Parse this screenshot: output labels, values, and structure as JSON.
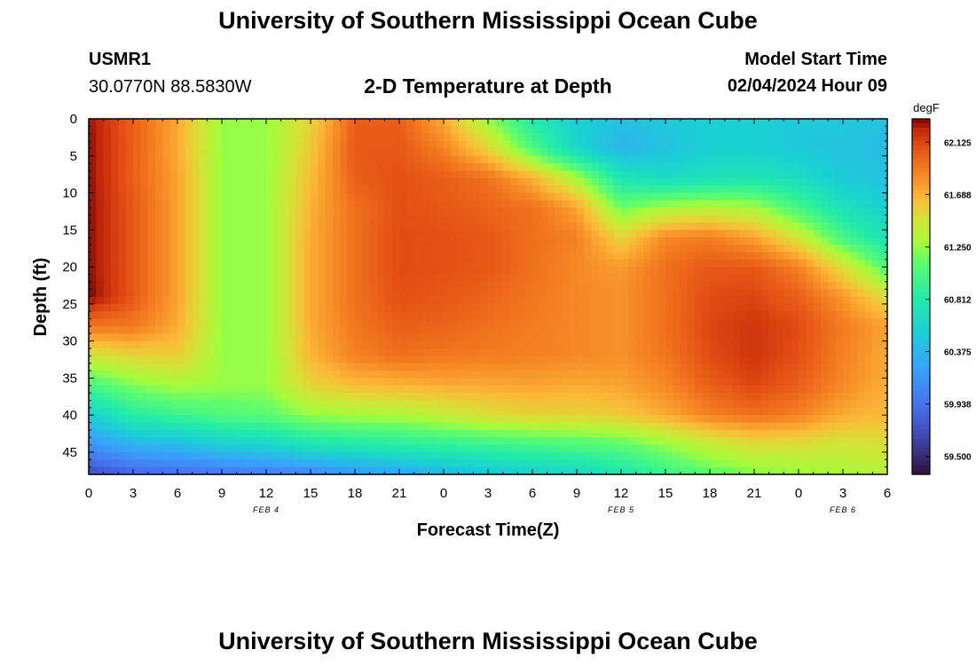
{
  "page": {
    "title": "University of Southern Mississippi Ocean Cube",
    "title_bottom": "University of Southern Mississippi Ocean Cube",
    "station_id": "USMR1",
    "coordinates": "30.0770N  88.5830W",
    "plot_title": "2-D Temperature at Depth",
    "model_start_label": "Model Start Time",
    "model_start_value": "02/04/2024 Hour 09"
  },
  "chart_data": {
    "type": "heatmap",
    "title": "2-D Temperature at Depth",
    "xlabel": "Forecast Time(Z)",
    "ylabel": "Depth (ft)",
    "x_hours_range": [
      0,
      54
    ],
    "y_range_ft": [
      0,
      48
    ],
    "x_ticks": [
      {
        "h": 0,
        "label": "0"
      },
      {
        "h": 3,
        "label": "3"
      },
      {
        "h": 6,
        "label": "6"
      },
      {
        "h": 9,
        "label": "9"
      },
      {
        "h": 12,
        "label": "12"
      },
      {
        "h": 15,
        "label": "15"
      },
      {
        "h": 18,
        "label": "18"
      },
      {
        "h": 21,
        "label": "21"
      },
      {
        "h": 24,
        "label": "0"
      },
      {
        "h": 27,
        "label": "3"
      },
      {
        "h": 30,
        "label": "6"
      },
      {
        "h": 33,
        "label": "9"
      },
      {
        "h": 36,
        "label": "12"
      },
      {
        "h": 39,
        "label": "15"
      },
      {
        "h": 42,
        "label": "18"
      },
      {
        "h": 45,
        "label": "21"
      },
      {
        "h": 48,
        "label": "0"
      },
      {
        "h": 51,
        "label": "3"
      },
      {
        "h": 54,
        "label": "6"
      }
    ],
    "y_ticks": [
      0,
      5,
      10,
      15,
      20,
      25,
      30,
      35,
      40,
      45
    ],
    "date_labels": [
      {
        "h": 12,
        "label": "FEB 4"
      },
      {
        "h": 36,
        "label": "FEB 5"
      },
      {
        "h": 51,
        "label": "FEB 6"
      }
    ],
    "colorbar": {
      "unit": "degF",
      "min": 59.35,
      "max": 62.32,
      "ticks": [
        62.125,
        61.688,
        61.25,
        60.812,
        60.375,
        59.938,
        59.5
      ],
      "tick_labels": [
        "62.125",
        "61.688",
        "61.250",
        "60.812",
        "60.375",
        "59.938",
        "59.500"
      ]
    },
    "depths_ft": [
      0,
      4,
      8,
      12,
      16,
      20,
      24,
      28,
      32,
      36,
      40,
      44,
      48
    ],
    "times_h": [
      0,
      3,
      6,
      9,
      12,
      15,
      18,
      21,
      24,
      27,
      30,
      33,
      36,
      39,
      42,
      45,
      48,
      51,
      54
    ],
    "temperature_degF": [
      [
        62.28,
        62.02,
        61.72,
        61.25,
        61.25,
        61.55,
        62.02,
        62.02,
        61.72,
        61.25,
        60.8,
        60.55,
        60.45,
        60.5,
        60.55,
        60.55,
        60.5,
        60.5,
        60.45
      ],
      [
        62.3,
        62.02,
        61.72,
        61.25,
        61.25,
        61.6,
        62.05,
        62.05,
        61.88,
        61.55,
        61.05,
        60.6,
        60.35,
        60.45,
        60.55,
        60.55,
        60.5,
        60.45,
        60.42
      ],
      [
        62.3,
        62.02,
        61.75,
        61.25,
        61.25,
        61.65,
        62.02,
        62.08,
        62.02,
        61.95,
        61.7,
        61.3,
        60.75,
        60.65,
        60.7,
        60.75,
        60.65,
        60.5,
        60.45
      ],
      [
        62.3,
        62.05,
        61.75,
        61.25,
        61.25,
        61.7,
        61.95,
        62.08,
        62.05,
        62.0,
        61.95,
        61.75,
        61.15,
        61.3,
        61.35,
        61.3,
        61.0,
        60.7,
        60.55
      ],
      [
        62.3,
        62.05,
        61.75,
        61.25,
        61.25,
        61.72,
        61.95,
        62.1,
        62.08,
        62.05,
        61.95,
        61.88,
        61.55,
        61.85,
        61.9,
        61.75,
        61.45,
        61.0,
        60.7
      ],
      [
        62.3,
        62.05,
        61.75,
        61.25,
        61.25,
        61.72,
        61.95,
        62.1,
        62.08,
        62.05,
        61.95,
        61.85,
        61.78,
        61.95,
        62.05,
        62.05,
        61.88,
        61.5,
        61.05
      ],
      [
        62.32,
        62.05,
        61.75,
        61.25,
        61.25,
        61.72,
        61.95,
        62.08,
        62.05,
        62.0,
        61.92,
        61.85,
        61.82,
        61.95,
        62.1,
        62.12,
        62.02,
        61.8,
        61.5
      ],
      [
        61.92,
        61.92,
        61.72,
        61.25,
        61.25,
        61.72,
        61.92,
        62.02,
        62.0,
        61.95,
        61.9,
        61.85,
        61.82,
        61.95,
        62.12,
        62.18,
        62.1,
        61.9,
        61.75
      ],
      [
        61.45,
        61.55,
        61.58,
        61.25,
        61.25,
        61.68,
        61.88,
        61.95,
        61.92,
        61.9,
        61.88,
        61.85,
        61.82,
        61.92,
        62.1,
        62.18,
        62.08,
        61.88,
        61.72
      ],
      [
        61.0,
        61.2,
        61.3,
        61.25,
        61.25,
        61.55,
        61.65,
        61.68,
        61.72,
        61.72,
        61.75,
        61.72,
        61.75,
        61.85,
        62.02,
        62.12,
        62.02,
        61.85,
        61.7
      ],
      [
        60.55,
        60.85,
        60.95,
        61.05,
        61.1,
        61.25,
        61.3,
        61.32,
        61.4,
        61.5,
        61.55,
        61.55,
        61.6,
        61.72,
        61.88,
        61.95,
        61.88,
        61.72,
        61.65
      ],
      [
        60.15,
        60.35,
        60.4,
        60.55,
        60.6,
        60.75,
        60.8,
        60.85,
        60.9,
        60.95,
        61.0,
        61.05,
        61.1,
        61.25,
        61.4,
        61.5,
        61.5,
        61.45,
        61.5
      ],
      [
        59.7,
        59.85,
        59.9,
        59.95,
        60.0,
        60.05,
        60.15,
        60.25,
        60.35,
        60.45,
        60.55,
        60.6,
        60.75,
        60.95,
        61.1,
        61.2,
        61.25,
        61.3,
        61.35
      ]
    ]
  }
}
